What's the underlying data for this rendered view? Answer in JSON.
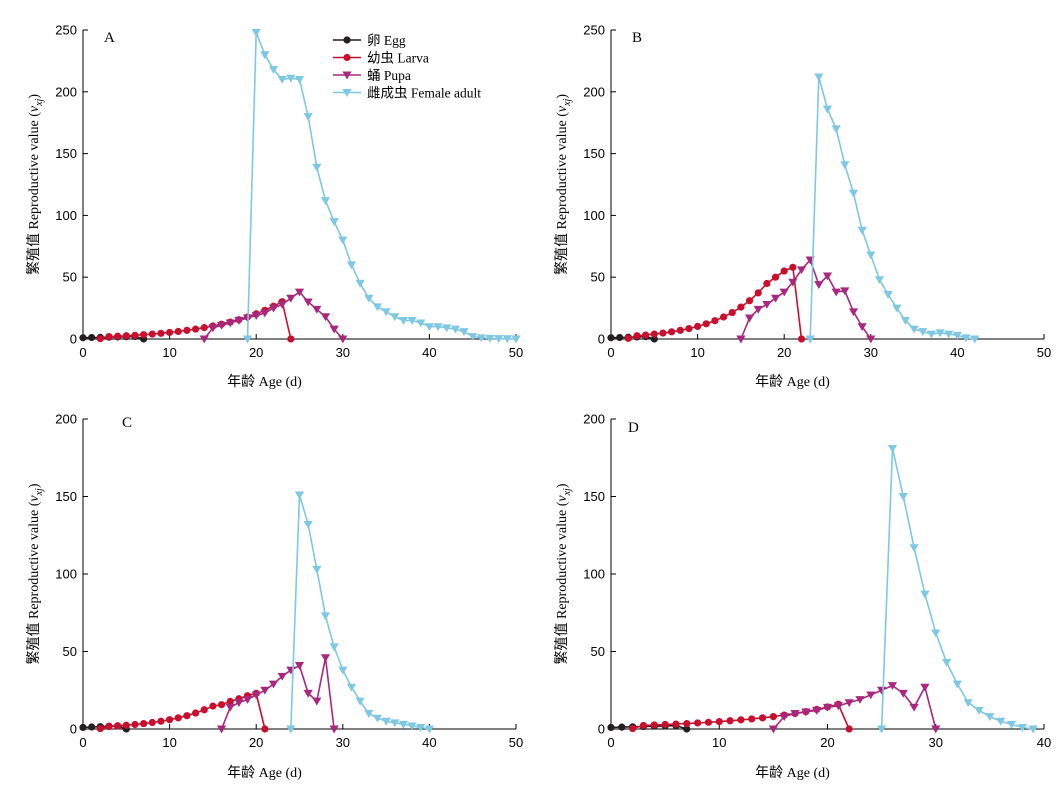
{
  "chart_data": [
    {
      "panel": "A",
      "type": "line",
      "xlabel": "年龄 Age (d)",
      "ylabel_main": "繁殖值 Reproductive value (",
      "ylabel_var": "v",
      "ylabel_sub": "xj",
      "ylabel_end": ")",
      "xlim": [
        0,
        50
      ],
      "xticks": [
        0,
        10,
        20,
        30,
        40,
        50
      ],
      "ylim": [
        0,
        250
      ],
      "yticks": [
        0,
        50,
        100,
        150,
        200,
        250
      ],
      "series": [
        {
          "name": "卵 Egg",
          "x": [
            0,
            1,
            2,
            3,
            4,
            5,
            6,
            7
          ],
          "y": [
            1,
            1.2,
            1.3,
            1.5,
            1.7,
            1.9,
            2.1,
            0
          ]
        },
        {
          "name": "幼虫 Larva",
          "x": [
            2,
            3,
            4,
            5,
            6,
            7,
            8,
            9,
            10,
            11,
            12,
            13,
            14,
            15,
            16,
            17,
            18,
            19,
            20,
            21,
            22,
            23,
            24
          ],
          "y": [
            0.3,
            1.9,
            2.2,
            2.6,
            3,
            3.5,
            4,
            4.6,
            5.3,
            6.1,
            7,
            8,
            9.2,
            10.5,
            12,
            13.7,
            15.6,
            17.8,
            20.3,
            23.2,
            26.5,
            30.2,
            0
          ]
        },
        {
          "name": "蛹 Pupa",
          "x": [
            14,
            15,
            16,
            17,
            18,
            19,
            20,
            21,
            22,
            23,
            24,
            25,
            26,
            27,
            28,
            29,
            30
          ],
          "y": [
            0,
            9,
            11,
            13,
            15,
            17,
            19,
            21,
            25,
            28,
            33,
            38,
            30,
            24,
            18,
            8,
            0
          ]
        },
        {
          "name": "雌成虫 Female adult",
          "x": [
            19,
            20,
            21,
            22,
            23,
            24,
            25,
            26,
            27,
            28,
            29,
            30,
            31,
            32,
            33,
            34,
            35,
            36,
            37,
            38,
            39,
            40,
            41,
            42,
            43,
            44,
            45,
            46,
            47,
            48,
            49,
            50
          ],
          "y": [
            0,
            248,
            230,
            218,
            210,
            211,
            210,
            180,
            139,
            112,
            95,
            80,
            60,
            45,
            33,
            26,
            22,
            18,
            15,
            15,
            13,
            10,
            10,
            9,
            8,
            6,
            2,
            1,
            0.5,
            0.3,
            0.2,
            0
          ]
        }
      ]
    },
    {
      "panel": "B",
      "type": "line",
      "xlabel": "年龄 Age (d)",
      "ylabel_main": "繁殖值 Reproductive value (",
      "ylabel_var": "v",
      "ylabel_sub": "xj",
      "ylabel_end": ")",
      "xlim": [
        0,
        50
      ],
      "xticks": [
        0,
        10,
        20,
        30,
        40,
        50
      ],
      "ylim": [
        0,
        250
      ],
      "yticks": [
        0,
        50,
        100,
        150,
        200,
        250
      ],
      "series": [
        {
          "name": "卵 Egg",
          "x": [
            0,
            1,
            2,
            3,
            4,
            5
          ],
          "y": [
            1,
            1.2,
            1.4,
            1.7,
            2,
            0
          ]
        },
        {
          "name": "幼虫 Larva",
          "x": [
            2,
            3,
            4,
            5,
            6,
            7,
            8,
            9,
            10,
            11,
            12,
            13,
            14,
            15,
            16,
            17,
            18,
            19,
            20,
            21,
            22
          ],
          "y": [
            0.5,
            2.6,
            3.2,
            4,
            4.8,
            5.8,
            7,
            8.4,
            10.2,
            12.3,
            14.8,
            17.8,
            21.4,
            25.8,
            31,
            37.3,
            44.9,
            50,
            55,
            58,
            0
          ]
        },
        {
          "name": "蛹 Pupa",
          "x": [
            15,
            16,
            17,
            18,
            19,
            20,
            21,
            22,
            23,
            24,
            25,
            26,
            27,
            28,
            29,
            30
          ],
          "y": [
            0,
            17,
            24,
            28,
            33,
            38,
            46,
            56,
            64,
            44,
            51,
            38,
            39,
            22,
            10,
            0
          ]
        },
        {
          "name": "雌成虫 Female adult",
          "x": [
            23,
            24,
            25,
            26,
            27,
            28,
            29,
            30,
            31,
            32,
            33,
            34,
            35,
            36,
            37,
            38,
            39,
            40,
            41,
            42
          ],
          "y": [
            0,
            212,
            186,
            170,
            141,
            118,
            88,
            68,
            48,
            36,
            25,
            15,
            8,
            6,
            4,
            5,
            4,
            3,
            1,
            0
          ]
        }
      ]
    },
    {
      "panel": "C",
      "type": "line",
      "xlabel": "年龄 Age (d)",
      "ylabel_main": "繁殖值 Reproductive value (",
      "ylabel_var": "v",
      "ylabel_sub": "xj",
      "ylabel_end": ")",
      "xlim": [
        0,
        50
      ],
      "xticks": [
        0,
        10,
        20,
        30,
        40,
        50
      ],
      "ylim": [
        0,
        200
      ],
      "yticks": [
        0,
        50,
        100,
        150,
        200
      ],
      "series": [
        {
          "name": "卵 Egg",
          "x": [
            0,
            1,
            2,
            3,
            4,
            5
          ],
          "y": [
            1,
            1.3,
            1.5,
            1.8,
            2,
            0
          ]
        },
        {
          "name": "幼虫 Larva",
          "x": [
            2,
            3,
            4,
            5,
            6,
            7,
            8,
            9,
            10,
            11,
            12,
            13,
            14,
            15,
            16,
            17,
            18,
            19,
            20,
            21
          ],
          "y": [
            0.3,
            1.6,
            2,
            2.4,
            2.9,
            3.5,
            4.2,
            5,
            6,
            7.2,
            8.6,
            10.3,
            12.4,
            14.8,
            15.7,
            17.8,
            19.5,
            21.5,
            23,
            0
          ]
        },
        {
          "name": "蛹 Pupa",
          "x": [
            16,
            17,
            18,
            19,
            20,
            21,
            22,
            23,
            24,
            25,
            26,
            27,
            28,
            29
          ],
          "y": [
            0,
            14,
            17,
            19,
            22,
            25,
            29,
            34,
            38,
            41,
            23,
            18,
            46,
            0
          ]
        },
        {
          "name": "雌成虫 Female adult",
          "x": [
            24,
            25,
            26,
            27,
            28,
            29,
            30,
            31,
            32,
            33,
            34,
            35,
            36,
            37,
            38,
            39,
            40
          ],
          "y": [
            0,
            151,
            132,
            103,
            73,
            53,
            38,
            27,
            18,
            10,
            7,
            5,
            4,
            3,
            2,
            1,
            0
          ]
        }
      ]
    },
    {
      "panel": "D",
      "type": "line",
      "xlabel": "年龄 Age (d)",
      "ylabel_main": "繁殖值 Reproductive value (",
      "ylabel_var": "v",
      "ylabel_sub": "xj",
      "ylabel_end": ")",
      "xlim": [
        0,
        40
      ],
      "xticks": [
        0,
        10,
        20,
        30,
        40
      ],
      "ylim": [
        0,
        200
      ],
      "yticks": [
        0,
        50,
        100,
        150,
        200
      ],
      "series": [
        {
          "name": "卵 Egg",
          "x": [
            0,
            1,
            2,
            3,
            4,
            5,
            6,
            7
          ],
          "y": [
            1,
            1.2,
            1.4,
            1.6,
            1.8,
            2,
            2.2,
            0
          ]
        },
        {
          "name": "幼虫 Larva",
          "x": [
            2,
            3,
            4,
            5,
            6,
            7,
            8,
            9,
            10,
            11,
            12,
            13,
            14,
            15,
            16,
            17,
            18,
            19,
            20,
            21,
            22
          ],
          "y": [
            0.3,
            2.3,
            2.6,
            2.9,
            3.2,
            3.5,
            3.9,
            4.3,
            4.8,
            5.3,
            5.9,
            6.5,
            7.2,
            8,
            9,
            10,
            11.2,
            12.6,
            14.2,
            16,
            0
          ]
        },
        {
          "name": "蛹 Pupa",
          "x": [
            15,
            16,
            17,
            18,
            19,
            20,
            21,
            22,
            23,
            24,
            25,
            26,
            27,
            28,
            29,
            30
          ],
          "y": [
            0,
            8,
            10,
            11,
            12,
            14,
            15,
            17,
            19,
            22,
            25,
            28,
            23,
            14,
            27,
            0
          ]
        },
        {
          "name": "雌成虫 Female adult",
          "x": [
            25,
            26,
            27,
            28,
            29,
            30,
            31,
            32,
            33,
            34,
            35,
            36,
            37,
            38,
            39
          ],
          "y": [
            0,
            181,
            150,
            117,
            87,
            62,
            43,
            29,
            17,
            12,
            8,
            5,
            3,
            1,
            0
          ]
        }
      ]
    }
  ],
  "colors": {
    "egg": "#231f20",
    "larva": "#c8102e",
    "pupa": "#a8287f",
    "adult": "#7ec8e3"
  },
  "legend": {
    "panel": "A",
    "items": [
      {
        "label": "卵 Egg",
        "series": "egg"
      },
      {
        "label": "幼虫 Larva",
        "series": "larva"
      },
      {
        "label": "蛹 Pupa",
        "series": "pupa"
      },
      {
        "label": "雌成虫 Female adult",
        "series": "adult"
      }
    ]
  }
}
